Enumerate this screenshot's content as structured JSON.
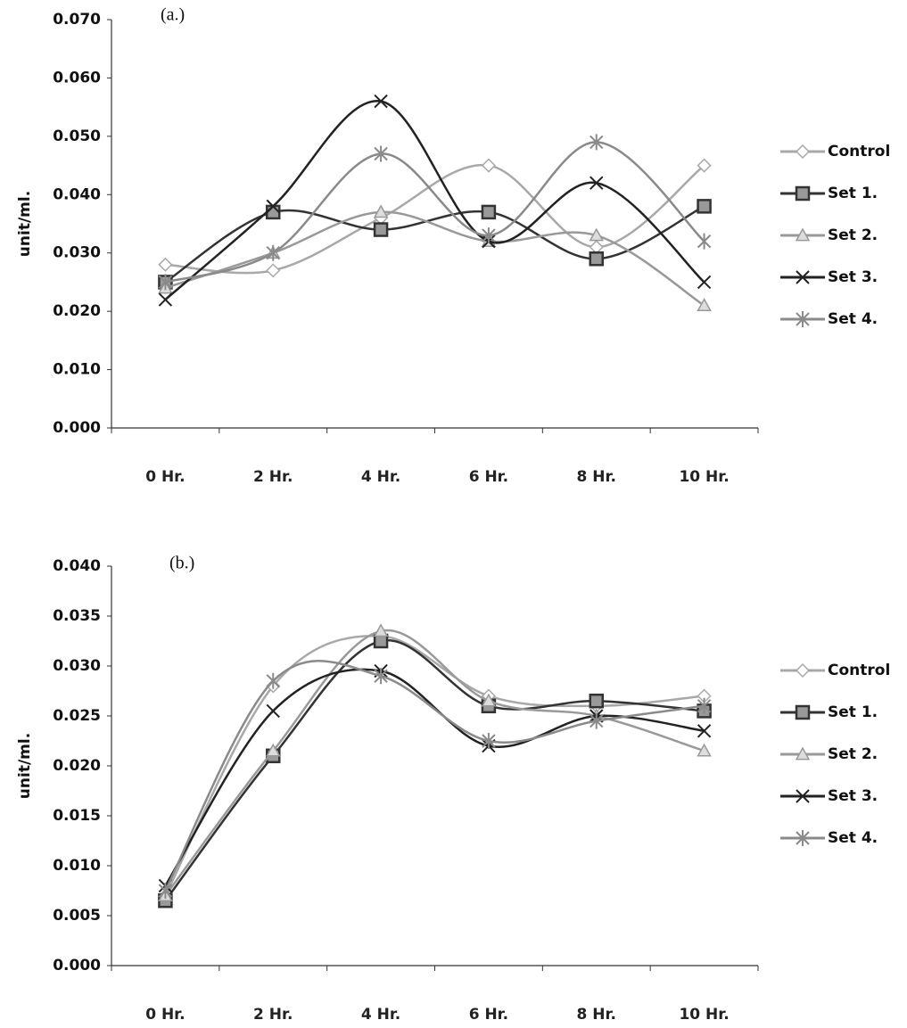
{
  "chart_data": [
    {
      "type": "line",
      "subtitle": "(a.)",
      "y_label": "unit/ml.",
      "categories": [
        "0 Hr.",
        "2 Hr.",
        "4 Hr.",
        "6 Hr.",
        "8 Hr.",
        "10 Hr."
      ],
      "ylim": [
        0,
        0.07
      ],
      "yticks": [
        {
          "value": 0,
          "label": "0.000"
        },
        {
          "value": 0.01,
          "label": "0.010"
        },
        {
          "value": 0.02,
          "label": "0.020"
        },
        {
          "value": 0.03,
          "label": "0.030"
        },
        {
          "value": 0.04,
          "label": "0.040"
        },
        {
          "value": 0.05,
          "label": "0.050"
        },
        {
          "value": 0.06,
          "label": "0.060"
        },
        {
          "value": 0.07,
          "label": "0.070"
        }
      ],
      "legend": "right",
      "series": [
        {
          "name": "Control",
          "color": "#a8a8a8",
          "marker": "diamond",
          "values": [
            0.028,
            0.027,
            0.036,
            0.045,
            0.031,
            0.045
          ]
        },
        {
          "name": "Set 1.",
          "color": "#333333",
          "marker": "square",
          "values": [
            0.025,
            0.037,
            0.034,
            0.037,
            0.029,
            0.038
          ]
        },
        {
          "name": "Set 2.",
          "color": "#999999",
          "marker": "triangle",
          "values": [
            0.024,
            0.03,
            0.037,
            0.032,
            0.033,
            0.021
          ]
        },
        {
          "name": "Set 3.",
          "color": "#222222",
          "marker": "x",
          "values": [
            0.022,
            0.038,
            0.056,
            0.032,
            0.042,
            0.025
          ]
        },
        {
          "name": "Set 4.",
          "color": "#8a8a8a",
          "marker": "asterisk",
          "values": [
            0.025,
            0.03,
            0.047,
            0.033,
            0.049,
            0.032
          ]
        }
      ]
    },
    {
      "type": "line",
      "subtitle": "(b.)",
      "y_label": "unit/ml.",
      "categories": [
        "0 Hr.",
        "2 Hr.",
        "4 Hr.",
        "6 Hr.",
        "8 Hr.",
        "10 Hr."
      ],
      "ylim": [
        0,
        0.04
      ],
      "yticks": [
        {
          "value": 0,
          "label": "0.000"
        },
        {
          "value": 0.005,
          "label": "0.005"
        },
        {
          "value": 0.01,
          "label": "0.010"
        },
        {
          "value": 0.015,
          "label": "0.015"
        },
        {
          "value": 0.02,
          "label": "0.020"
        },
        {
          "value": 0.025,
          "label": "0.025"
        },
        {
          "value": 0.03,
          "label": "0.030"
        },
        {
          "value": 0.035,
          "label": "0.035"
        },
        {
          "value": 0.04,
          "label": "0.040"
        }
      ],
      "legend": "right",
      "series": [
        {
          "name": "Control",
          "color": "#a8a8a8",
          "marker": "diamond",
          "values": [
            0.007,
            0.028,
            0.033,
            0.027,
            0.026,
            0.027
          ]
        },
        {
          "name": "Set 1.",
          "color": "#333333",
          "marker": "square",
          "values": [
            0.0065,
            0.021,
            0.0325,
            0.026,
            0.0265,
            0.0255
          ]
        },
        {
          "name": "Set 2.",
          "color": "#999999",
          "marker": "triangle",
          "values": [
            0.007,
            0.0215,
            0.0335,
            0.0265,
            0.025,
            0.0215
          ]
        },
        {
          "name": "Set 3.",
          "color": "#222222",
          "marker": "x",
          "values": [
            0.008,
            0.0255,
            0.0295,
            0.022,
            0.025,
            0.0235
          ]
        },
        {
          "name": "Set 4.",
          "color": "#8a8a8a",
          "marker": "asterisk",
          "values": [
            0.0075,
            0.0285,
            0.029,
            0.0225,
            0.0245,
            0.026
          ]
        }
      ]
    }
  ]
}
